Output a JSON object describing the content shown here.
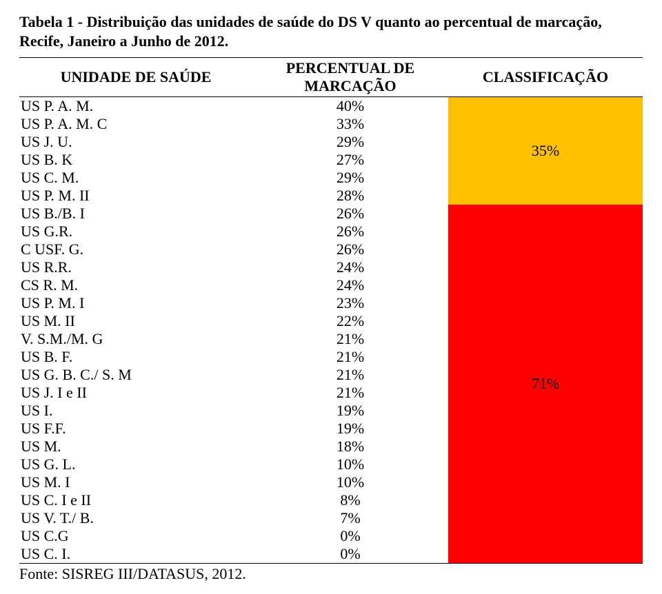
{
  "caption_line1": "Tabela 1 - Distribuição das unidades de saúde do DS V quanto ao percentual de marcação,",
  "caption_line2": "Recife, Janeiro a Junho de 2012.",
  "header": {
    "unit": "UNIDADE DE SAÚDE",
    "pct_line1": "PERCENTUAL DE",
    "pct_line2": "MARCAÇÃO",
    "cls": "CLASSIFICAÇÃO"
  },
  "groups": [
    {
      "bg": "#ffc000",
      "cls_label": "35%",
      "cls_text_color": "#000000",
      "rows": [
        {
          "unit": "US P. A. M.",
          "pct": "40%"
        },
        {
          "unit": "US P. A. M. C",
          "pct": "33%"
        },
        {
          "unit": "US J. U.",
          "pct": "29%"
        },
        {
          "unit": "US B. K",
          "pct": "27%"
        },
        {
          "unit": "US C. M.",
          "pct": "29%"
        },
        {
          "unit": "US P. M. II",
          "pct": "28%"
        }
      ]
    },
    {
      "bg": "#ff0000",
      "cls_label": "71%",
      "cls_text_color": "#000000",
      "rows": [
        {
          "unit": "US B./B. I",
          "pct": "26%"
        },
        {
          "unit": "US G.R.",
          "pct": "26%"
        },
        {
          "unit": "C USF. G.",
          "pct": "26%"
        },
        {
          "unit": "US R.R.",
          "pct": "24%"
        },
        {
          "unit": "CS R. M.",
          "pct": "24%"
        },
        {
          "unit": "US P. M. I",
          "pct": "23%"
        },
        {
          "unit": "US M. II",
          "pct": "22%"
        },
        {
          "unit": "V. S.M./M. G",
          "pct": "21%"
        },
        {
          "unit": "US B. F.",
          "pct": "21%"
        },
        {
          "unit": "US G. B. C./ S. M",
          "pct": "21%"
        },
        {
          "unit": "US J. I e II",
          "pct": "21%"
        },
        {
          "unit": "US I.",
          "pct": "19%"
        },
        {
          "unit": "US F.F.",
          "pct": "19%"
        },
        {
          "unit": "US M.",
          "pct": "18%"
        },
        {
          "unit": "US G. L.",
          "pct": "10%"
        },
        {
          "unit": "US M. I",
          "pct": "10%"
        },
        {
          "unit": "US C. I e II",
          "pct": "8%"
        },
        {
          "unit": "US V. T./ B.",
          "pct": "7%"
        },
        {
          "unit": "US C.G",
          "pct": "0%"
        },
        {
          "unit": "US C. I.",
          "pct": "0%"
        }
      ]
    }
  ],
  "source": "Fonte: SISREG III/DATASUS, 2012."
}
